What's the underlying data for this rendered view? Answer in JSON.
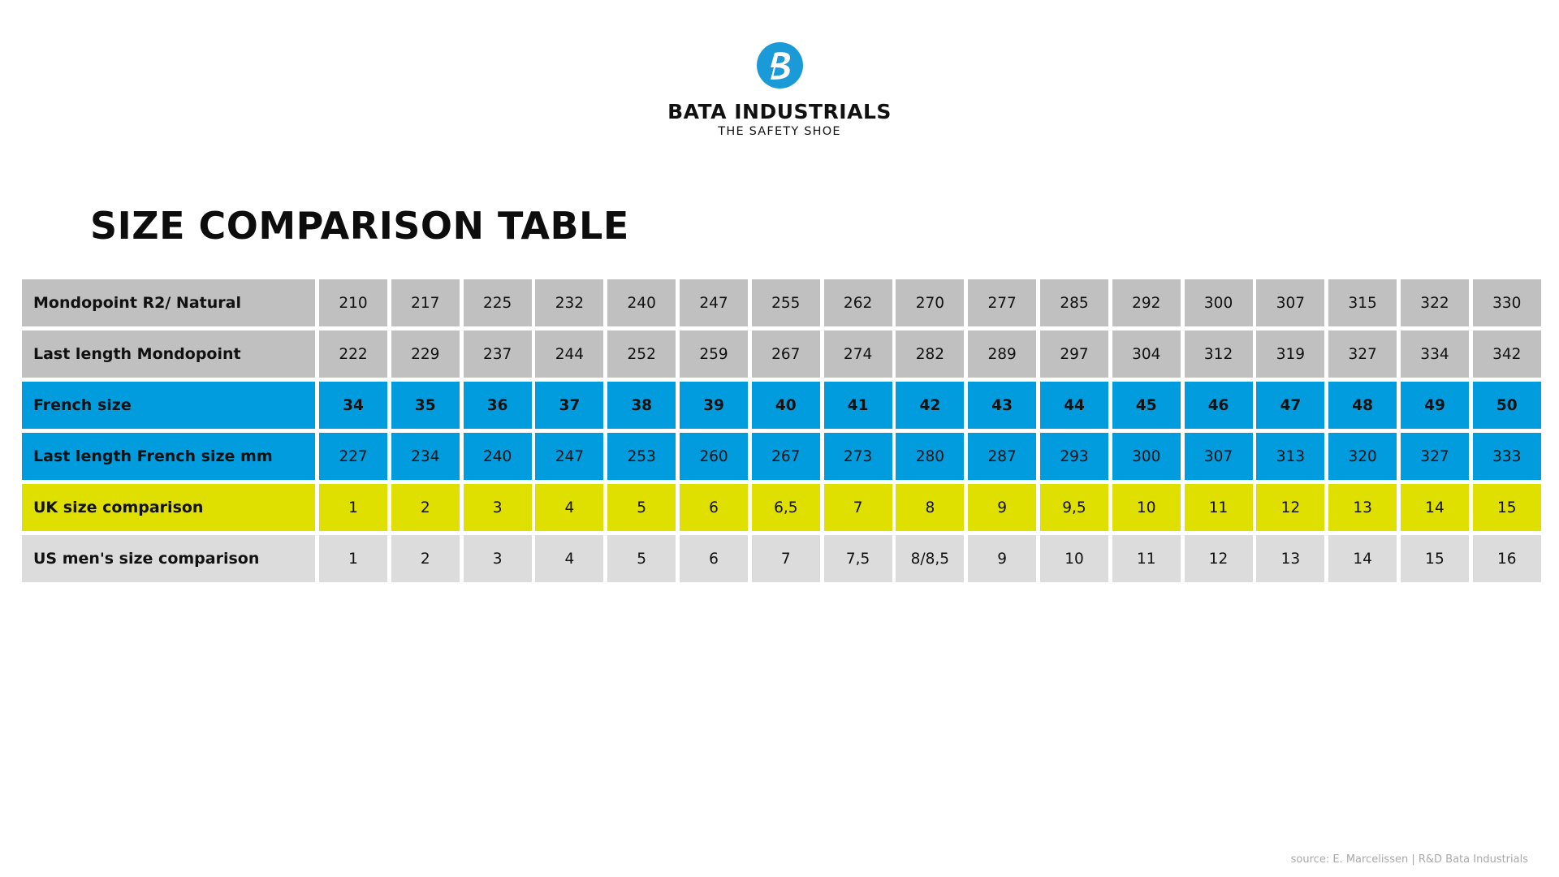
{
  "brand": {
    "name": "BATA INDUSTRIALS",
    "tagline": "THE SAFETY SHOE",
    "logo_icon": "bata-b-logo-icon",
    "logo_color": "#1a9bd7"
  },
  "title": "SIZE COMPARISON TABLE",
  "table": {
    "rows": [
      {
        "label": "Mondopoint R2/ Natural",
        "color": "#c0c0c0",
        "bold": false,
        "values": [
          "210",
          "217",
          "225",
          "232",
          "240",
          "247",
          "255",
          "262",
          "270",
          "277",
          "285",
          "292",
          "300",
          "307",
          "315",
          "322",
          "330"
        ]
      },
      {
        "label": "Last length Mondopoint",
        "color": "#c0c0c0",
        "bold": false,
        "values": [
          "222",
          "229",
          "237",
          "244",
          "252",
          "259",
          "267",
          "274",
          "282",
          "289",
          "297",
          "304",
          "312",
          "319",
          "327",
          "334",
          "342"
        ]
      },
      {
        "label": "French size",
        "color": "#009cde",
        "bold": true,
        "values": [
          "34",
          "35",
          "36",
          "37",
          "38",
          "39",
          "40",
          "41",
          "42",
          "43",
          "44",
          "45",
          "46",
          "47",
          "48",
          "49",
          "50"
        ]
      },
      {
        "label": "Last length French size mm",
        "color": "#009cde",
        "bold": false,
        "values": [
          "227",
          "234",
          "240",
          "247",
          "253",
          "260",
          "267",
          "273",
          "280",
          "287",
          "293",
          "300",
          "307",
          "313",
          "320",
          "327",
          "333"
        ]
      },
      {
        "label": "UK size comparison",
        "color": "#e0e000",
        "bold": false,
        "values": [
          "1",
          "2",
          "3",
          "4",
          "5",
          "6",
          "6,5",
          "7",
          "8",
          "9",
          "9,5",
          "10",
          "11",
          "12",
          "13",
          "14",
          "15"
        ]
      },
      {
        "label": "US men's size comparison",
        "color": "#dcdcdc",
        "bold": false,
        "values": [
          "1",
          "2",
          "3",
          "4",
          "5",
          "6",
          "7",
          "7,5",
          "8/8,5",
          "9",
          "10",
          "11",
          "12",
          "13",
          "14",
          "15",
          "16"
        ]
      }
    ]
  },
  "source": "source: E. Marcelissen | R&D Bata Industrials"
}
